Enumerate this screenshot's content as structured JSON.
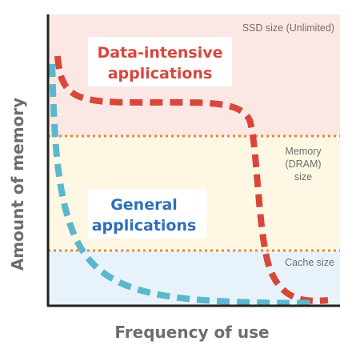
{
  "axes": {
    "y_title": "Amount of memory",
    "x_title": "Frequency of use"
  },
  "zones": {
    "ssd": {
      "label": "SSD size (Unlimited)",
      "color": "#fbe7e4"
    },
    "memory": {
      "label_lines": [
        "Memory",
        "(DRAM)",
        "size"
      ],
      "color": "#fdf7e3"
    },
    "cache": {
      "label": "Cache size",
      "color": "#e8f2fb"
    }
  },
  "curves": {
    "data_intensive": {
      "label_lines": [
        "Data-intensive",
        "applications"
      ],
      "color": "#d7473a"
    },
    "general": {
      "label_lines": [
        "General",
        "applications"
      ],
      "color": "#5ab8cc",
      "label_color": "#2f6fba"
    }
  },
  "boundary_color": "#e8872e"
}
